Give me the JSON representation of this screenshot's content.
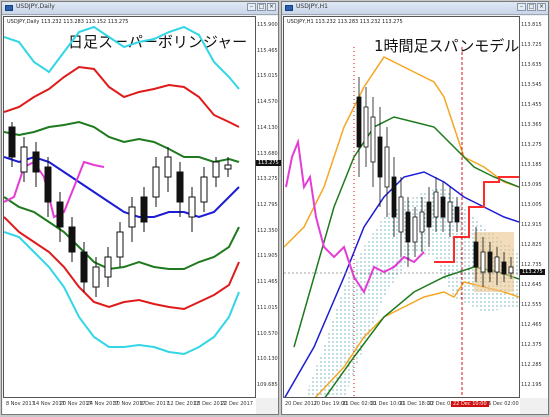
{
  "left_window": {
    "title": "USDJPY,Daily",
    "symbol_line": "USDJPY,Daily 113.232 113.283 113.152 113.275",
    "overlay_title": "日足スーパーボリンジャー",
    "price_tag": "113.275",
    "y_labels": [
      "115.900",
      "115.465",
      "115.015",
      "114.570",
      "114.130",
      "113.680",
      "113.275",
      "112.795",
      "112.350",
      "111.905",
      "111.465",
      "111.015",
      "110.570",
      "110.130",
      "109.685"
    ],
    "x_labels": [
      "8 Nov 2017",
      "14 Nov 2017",
      "20 Nov 2017",
      "24 Nov 2017",
      "30 Nov 2017",
      "6 Dec 2017",
      "12 Dec 2017",
      "18 Dec 2017",
      "22 Dec 2017"
    ]
  },
  "right_window": {
    "title": "USDJPY,H1",
    "symbol_line": "USDJPY,H1 113.232 113.283 113.232 113.275",
    "overlay_title": "1時間足スパンモデル",
    "price_tag": "113.275",
    "red_tag": "22 Dec 10:00",
    "y_labels": [
      "113.815",
      "113.725",
      "113.635",
      "113.545",
      "113.455",
      "113.365",
      "113.275",
      "113.185",
      "113.095",
      "113.005",
      "112.915",
      "112.825",
      "112.735",
      "112.645",
      "112.555",
      "112.465",
      "112.375",
      "112.285",
      "112.195"
    ],
    "x_labels": [
      "20 Dec 2017",
      "20 Dec 19:00",
      "21 Dec 02:00",
      "21 Dec 10:00",
      "21 Dec 18:00",
      "22 Dec 02:00",
      "22 Dec 10:00",
      "25 Dec 02:00"
    ]
  },
  "colors": {
    "bollinger_3sigma": "#33d6e6",
    "bollinger_2sigma": "#e01a1a",
    "bollinger_1sigma": "#1f7a1f",
    "bollinger_mid": "#1c1cd6",
    "chikou": "#e63cd6",
    "span_red": "#ff2a2a",
    "span_band": "#4aa0a8",
    "orange": "#f5a623"
  }
}
